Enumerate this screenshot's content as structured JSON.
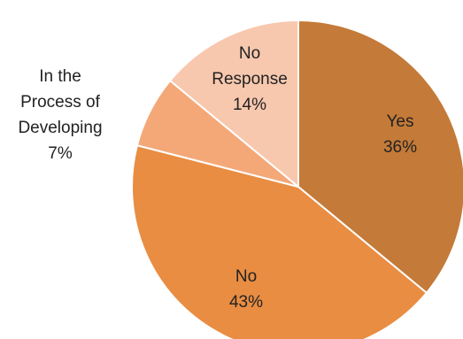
{
  "chart_data": {
    "type": "pie",
    "start_angle_deg": 0,
    "direction": "clockwise",
    "slices": [
      {
        "label": "Yes",
        "value": 36,
        "value_label": "36%",
        "color": "#c47a38"
      },
      {
        "label": "No",
        "value": 43,
        "value_label": "43%",
        "color": "#e98d43"
      },
      {
        "label": "In the Process of Developing",
        "value": 7,
        "value_label": "7%",
        "color": "#f4a878"
      },
      {
        "label": "No Response",
        "value": 14,
        "value_label": "14%",
        "color": "#f7c8ae"
      }
    ],
    "legend": "none"
  }
}
